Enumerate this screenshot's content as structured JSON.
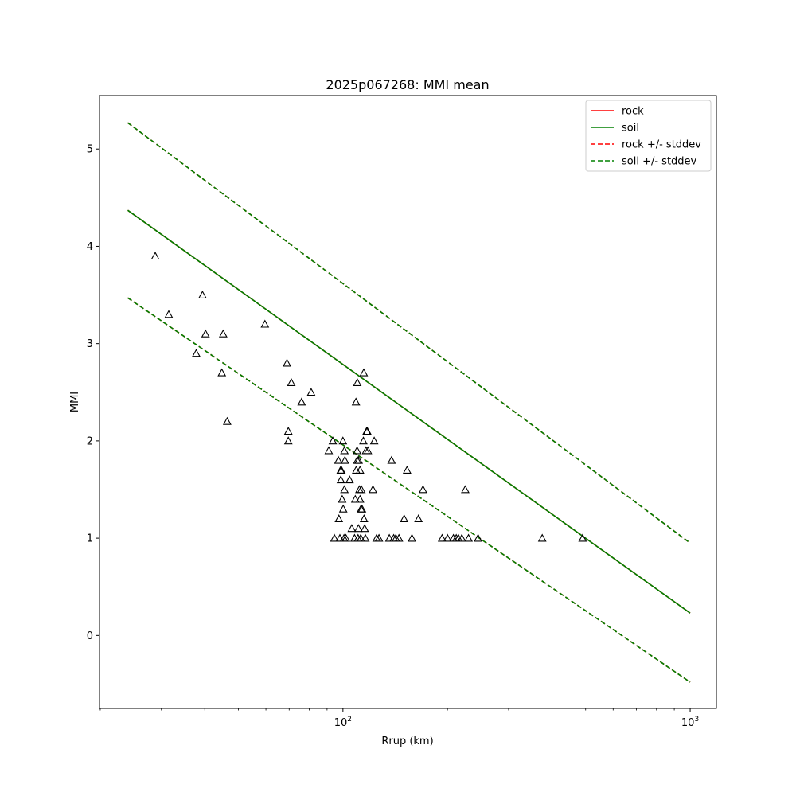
{
  "chart_data": {
    "type": "scatter",
    "title": "2025p067268: MMI mean",
    "xlabel": "Rrup (km)",
    "ylabel": "MMI",
    "xscale": "log",
    "xlim": [
      19.9,
      1190
    ],
    "ylim": [
      -0.75,
      5.55
    ],
    "grid": false,
    "legend_position": "top-right",
    "x_major_ticks": [
      {
        "value": 100,
        "base": "10",
        "exp": "2"
      },
      {
        "value": 1000,
        "base": "10",
        "exp": "3"
      }
    ],
    "y_ticks": [
      0,
      1,
      2,
      3,
      4,
      5
    ],
    "series": [
      {
        "name": "rock",
        "style": "solid",
        "color": "#ff0000",
        "x": [
          24,
          1000
        ],
        "y": [
          4.37,
          0.23
        ]
      },
      {
        "name": "soil",
        "style": "solid",
        "color": "#008000",
        "x": [
          24,
          1000
        ],
        "y": [
          4.37,
          0.23
        ]
      },
      {
        "name": "rock +/- stddev",
        "style": "dashed",
        "color": "#ff0000",
        "upper": {
          "x": [
            24,
            1000
          ],
          "y": [
            5.27,
            0.95
          ]
        },
        "lower": {
          "x": [
            24,
            1000
          ],
          "y": [
            3.47,
            -0.48
          ]
        }
      },
      {
        "name": "soil +/- stddev",
        "style": "dashed",
        "color": "#008000",
        "upper": {
          "x": [
            24,
            1000
          ],
          "y": [
            5.27,
            0.95
          ]
        },
        "lower": {
          "x": [
            24,
            1000
          ],
          "y": [
            3.47,
            -0.48
          ]
        }
      }
    ],
    "observations": {
      "marker": "triangle",
      "x": [
        28.8,
        31.5,
        37.8,
        39.4,
        40.2,
        44.8,
        45.2,
        46.4,
        59.6,
        69.0,
        69.6,
        69.6,
        71.0,
        76.0,
        81.0,
        91.0,
        93.5,
        94.5,
        97.0,
        97.3,
        98.0,
        98.5,
        98.6,
        99.0,
        99.5,
        100.0,
        100.2,
        100.7,
        101.0,
        101.0,
        101.3,
        102.0,
        104.5,
        106.0,
        108.0,
        108.5,
        109.0,
        109.2,
        109.8,
        110.0,
        110.0,
        110.5,
        110.8,
        111.0,
        111.5,
        112.0,
        112.0,
        112.5,
        112.7,
        113.0,
        113.5,
        114.5,
        114.8,
        115.0,
        115.5,
        116.0,
        116.5,
        117.0,
        117.5,
        118.0,
        122.0,
        123.0,
        125.0,
        127.0,
        136.0,
        138.0,
        140.0,
        142.0,
        145.0,
        150.0,
        153.0,
        158.0,
        165.0,
        170.0,
        193.0,
        200.0,
        208.0,
        212.0,
        215.0,
        220.0,
        225.0,
        230.0,
        245.0,
        375.0,
        490.0
      ],
      "y": [
        3.9,
        3.3,
        2.9,
        3.5,
        3.1,
        2.7,
        3.1,
        2.2,
        3.2,
        2.8,
        2.1,
        2.0,
        2.6,
        2.4,
        2.5,
        1.9,
        2.0,
        1.0,
        1.8,
        1.2,
        1.0,
        1.7,
        1.6,
        1.7,
        1.4,
        2.0,
        1.3,
        1.0,
        1.9,
        1.5,
        1.8,
        1.0,
        1.6,
        1.1,
        1.0,
        1.4,
        2.4,
        1.7,
        1.9,
        2.6,
        1.8,
        1.0,
        1.1,
        1.8,
        1.5,
        1.4,
        1.7,
        1.0,
        1.3,
        1.5,
        1.3,
        2.0,
        2.7,
        1.2,
        1.1,
        1.0,
        1.9,
        2.1,
        2.1,
        1.9,
        1.5,
        2.0,
        1.0,
        1.0,
        1.0,
        1.8,
        1.0,
        1.0,
        1.0,
        1.2,
        1.7,
        1.0,
        1.2,
        1.5,
        1.0,
        1.0,
        1.0,
        1.0,
        1.0,
        1.0,
        1.5,
        1.0,
        1.0,
        1.0,
        1.0
      ]
    }
  }
}
